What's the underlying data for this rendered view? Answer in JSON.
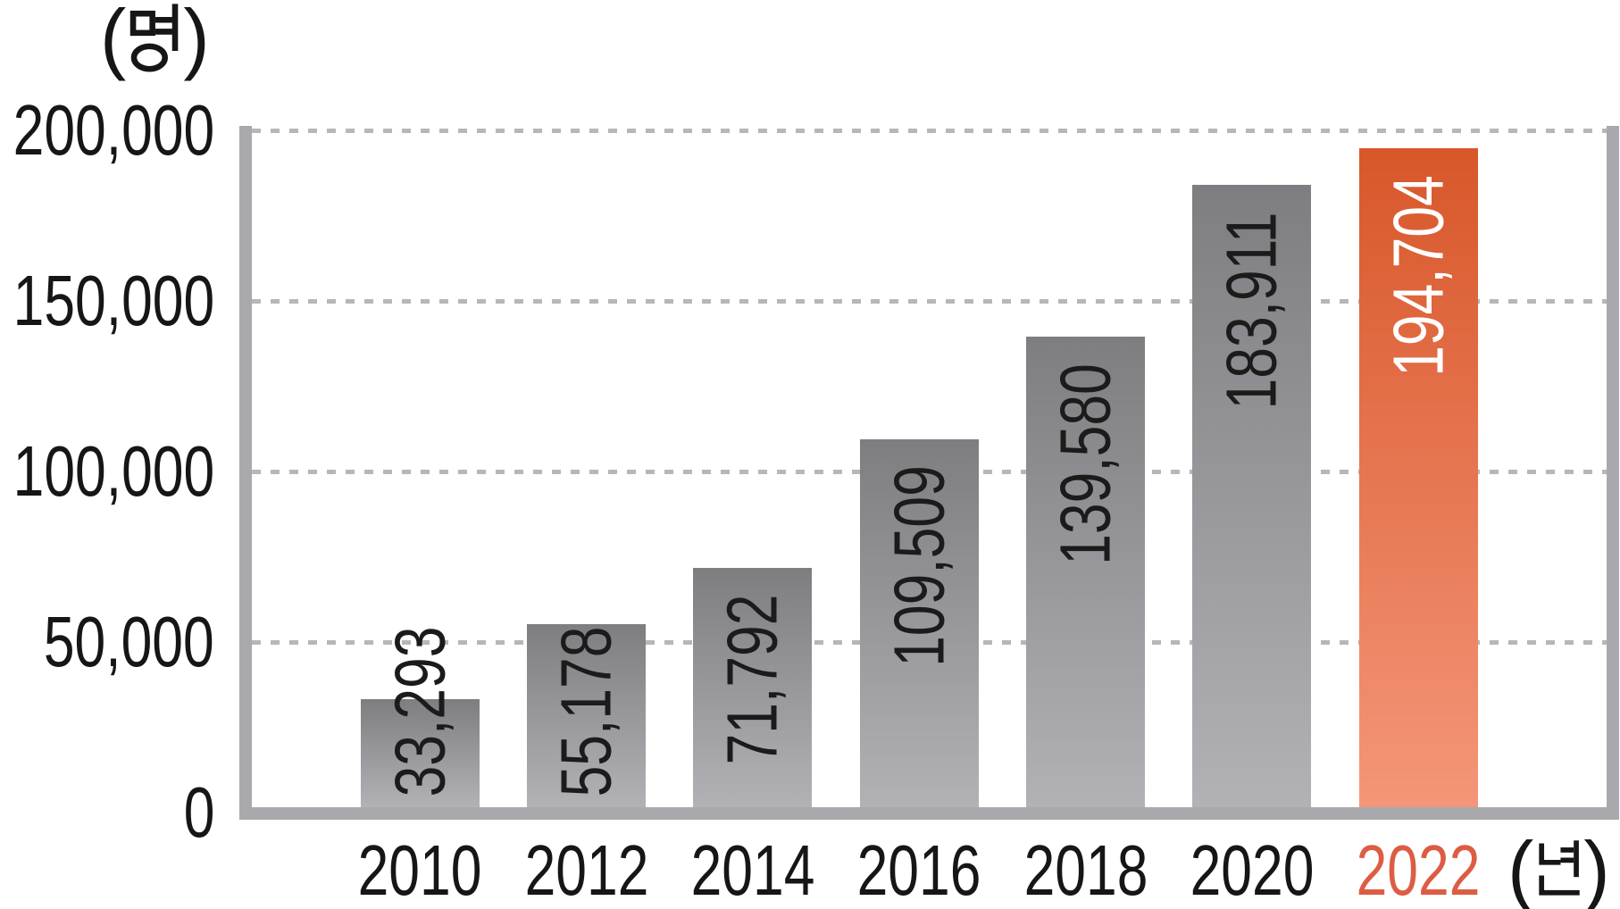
{
  "chart_data": {
    "type": "bar",
    "title": "",
    "categories": [
      "2010",
      "2012",
      "2014",
      "2016",
      "2018",
      "2020",
      "2022"
    ],
    "values": [
      33293,
      55178,
      71792,
      109509,
      139580,
      183911,
      194704
    ],
    "value_labels": [
      "33,293",
      "55,178",
      "71,792",
      "109,509",
      "139,580",
      "183,911",
      "194,704"
    ],
    "highlight_index": 6,
    "ylabel_unit": "(명)",
    "xlabel_unit": "(년)",
    "units": {
      "paren_open": "(",
      "paren_close": ")",
      "y_symbol": "명",
      "x_symbol": "년"
    },
    "y_ticks": [
      {
        "label": "200,000",
        "value": 200000
      },
      {
        "label": "150,000",
        "value": 150000
      },
      {
        "label": "100,000",
        "value": 100000
      },
      {
        "label": "50,000",
        "value": 50000
      },
      {
        "label": "0",
        "value": 0
      }
    ],
    "ylim": [
      0,
      200000
    ],
    "grid": "dashed-horizontal",
    "legend": "none",
    "colors": {
      "bar_top": "#7e7e81",
      "bar_bottom": "#b2b2b6",
      "highlight_top": "#d8572a",
      "highlight_bottom": "#f49679",
      "highlight_tick": "#dd5c44",
      "axis": "#a9a9ad",
      "gridline": "#b7b7b9",
      "label_dark": "#1b1b1b",
      "label_light": "#ffffff",
      "tick_text": "#161616"
    }
  }
}
